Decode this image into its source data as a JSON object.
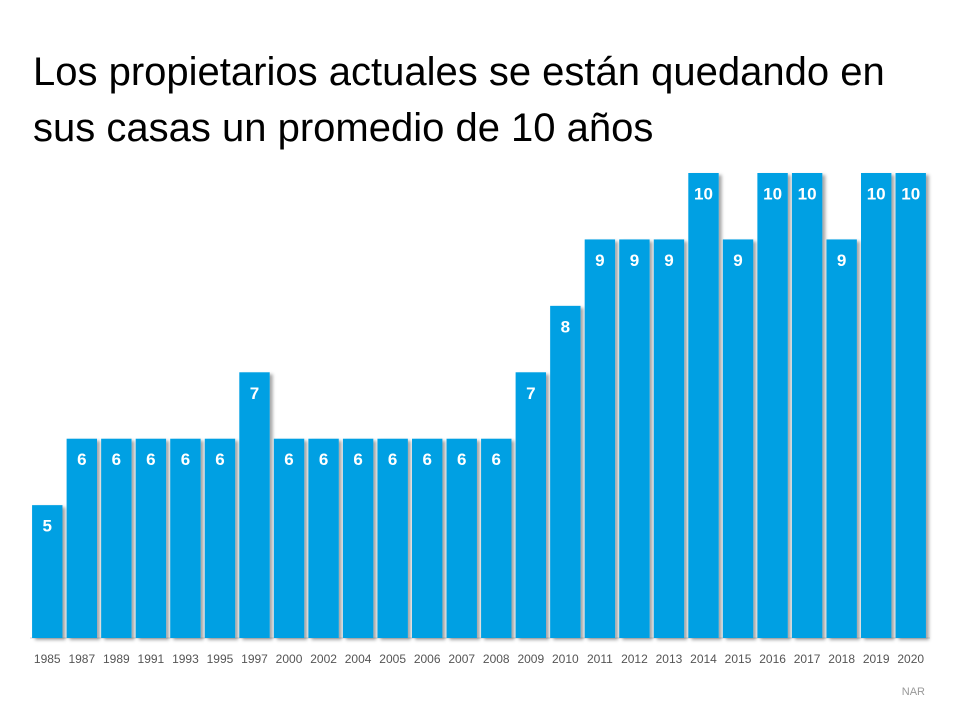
{
  "chart_data": {
    "type": "bar",
    "title": "Los propietarios actuales se están quedando en sus casas un promedio de 10 años",
    "categories": [
      "1985",
      "1987",
      "1989",
      "1991",
      "1993",
      "1995",
      "1997",
      "2000",
      "2002",
      "2004",
      "2005",
      "2006",
      "2007",
      "2008",
      "2009",
      "2010",
      "2011",
      "2012",
      "2013",
      "2014",
      "2015",
      "2016",
      "2017",
      "2018",
      "2019",
      "2020"
    ],
    "values": [
      5,
      6,
      6,
      6,
      6,
      6,
      7,
      6,
      6,
      6,
      6,
      6,
      6,
      6,
      7,
      8,
      9,
      9,
      9,
      10,
      9,
      10,
      10,
      9,
      10,
      10
    ],
    "color": "#00a0e3",
    "ylim": [
      3,
      10
    ],
    "source": "NAR"
  }
}
